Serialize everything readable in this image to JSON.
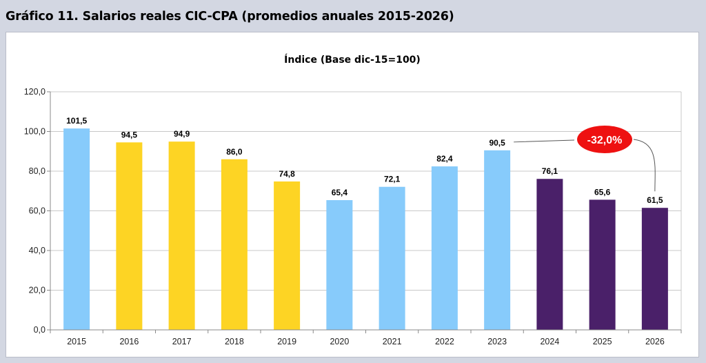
{
  "heading": "Gráfico 11. Salarios reales CIC-CPA (promedios anuales 2015-2026)",
  "chart_data": {
    "type": "bar",
    "title": "Índice (Base dic-15=100)",
    "xlabel": "",
    "ylabel": "",
    "ylim": [
      0,
      120
    ],
    "y_ticks": [
      0,
      20,
      40,
      60,
      80,
      100,
      120
    ],
    "y_tick_labels": [
      "0,0",
      "20,0",
      "40,0",
      "60,0",
      "80,0",
      "100,0",
      "120,0"
    ],
    "grid": true,
    "categories": [
      "2015",
      "2016",
      "2017",
      "2018",
      "2019",
      "2020",
      "2021",
      "2022",
      "2023",
      "2024",
      "2025",
      "2026"
    ],
    "values": [
      101.5,
      94.5,
      94.9,
      86.0,
      74.8,
      65.4,
      72.1,
      82.4,
      90.5,
      76.1,
      65.6,
      61.5
    ],
    "value_labels": [
      "101,5",
      "94,5",
      "94,9",
      "86,0",
      "74,8",
      "65,4",
      "72,1",
      "82,4",
      "90,5",
      "76,1",
      "65,6",
      "61,5"
    ],
    "bar_colors": [
      "#87cbfb",
      "#fdd424",
      "#fdd424",
      "#fdd424",
      "#fdd424",
      "#87cbfb",
      "#87cbfb",
      "#87cbfb",
      "#87cbfb",
      "#4a2069",
      "#4a2069",
      "#4a2069"
    ],
    "annotation": {
      "text": "-32,0%",
      "from_category": "2023",
      "to_category": "2026",
      "color": "#ee1111"
    }
  }
}
